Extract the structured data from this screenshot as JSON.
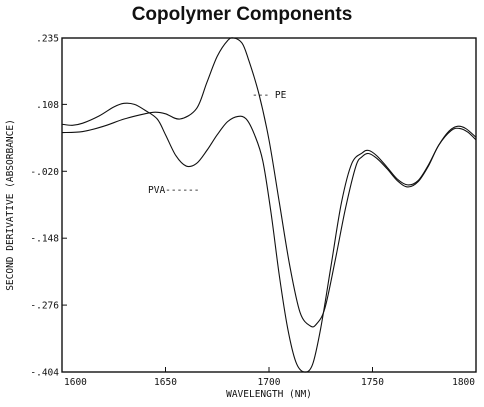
{
  "chart_data": {
    "type": "line",
    "title": "Copolymer Components",
    "xlabel": "WAVELENGTH (NM)",
    "ylabel": "SECOND DERIVATIVE (ABSORBANCE)",
    "xlim": [
      1600,
      1800
    ],
    "ylim": [
      -0.404,
      0.235
    ],
    "x_ticks": [
      1600,
      1650,
      1700,
      1750,
      1800
    ],
    "y_ticks": [
      0.235,
      0.108,
      -0.02,
      -0.148,
      -0.276,
      -0.404
    ],
    "x_tick_labels": [
      "1600",
      "1650",
      "1700",
      "1750",
      "1800"
    ],
    "y_tick_labels": [
      ".235",
      ".108",
      "-.020",
      "-.148",
      "-.276",
      "-.404"
    ],
    "grid": false,
    "series": [
      {
        "name": "PE",
        "label_text": "--- PE",
        "points": [
          [
            1600,
            0.054
          ],
          [
            1610,
            0.056
          ],
          [
            1620,
            0.066
          ],
          [
            1630,
            0.08
          ],
          [
            1640,
            0.09
          ],
          [
            1645,
            0.093
          ],
          [
            1650,
            0.09
          ],
          [
            1657,
            0.08
          ],
          [
            1665,
            0.1
          ],
          [
            1670,
            0.15
          ],
          [
            1675,
            0.2
          ],
          [
            1680,
            0.23
          ],
          [
            1683,
            0.235
          ],
          [
            1687,
            0.225
          ],
          [
            1690,
            0.195
          ],
          [
            1695,
            0.13
          ],
          [
            1700,
            0.04
          ],
          [
            1705,
            -0.08
          ],
          [
            1710,
            -0.2
          ],
          [
            1715,
            -0.29
          ],
          [
            1720,
            -0.316
          ],
          [
            1723,
            -0.312
          ],
          [
            1727,
            -0.282
          ],
          [
            1732,
            -0.19
          ],
          [
            1737,
            -0.09
          ],
          [
            1742,
            -0.01
          ],
          [
            1745,
            0.008
          ],
          [
            1748,
            0.014
          ],
          [
            1752,
            0.005
          ],
          [
            1757,
            -0.015
          ],
          [
            1762,
            -0.038
          ],
          [
            1767,
            -0.05
          ],
          [
            1772,
            -0.04
          ],
          [
            1777,
            -0.01
          ],
          [
            1782,
            0.03
          ],
          [
            1788,
            0.058
          ],
          [
            1792,
            0.062
          ],
          [
            1796,
            0.055
          ],
          [
            1800,
            0.04
          ]
        ]
      },
      {
        "name": "PVA",
        "label_text": "PVA------",
        "points": [
          [
            1600,
            0.07
          ],
          [
            1605,
            0.068
          ],
          [
            1610,
            0.072
          ],
          [
            1618,
            0.086
          ],
          [
            1625,
            0.103
          ],
          [
            1630,
            0.11
          ],
          [
            1635,
            0.108
          ],
          [
            1640,
            0.097
          ],
          [
            1646,
            0.08
          ],
          [
            1650,
            0.05
          ],
          [
            1655,
            0.01
          ],
          [
            1660,
            -0.01
          ],
          [
            1665,
            -0.005
          ],
          [
            1670,
            0.02
          ],
          [
            1675,
            0.05
          ],
          [
            1680,
            0.075
          ],
          [
            1685,
            0.085
          ],
          [
            1689,
            0.08
          ],
          [
            1693,
            0.05
          ],
          [
            1697,
            0.0
          ],
          [
            1701,
            -0.1
          ],
          [
            1705,
            -0.22
          ],
          [
            1709,
            -0.32
          ],
          [
            1713,
            -0.385
          ],
          [
            1717,
            -0.404
          ],
          [
            1721,
            -0.39
          ],
          [
            1725,
            -0.32
          ],
          [
            1730,
            -0.2
          ],
          [
            1735,
            -0.08
          ],
          [
            1740,
            -0.005
          ],
          [
            1745,
            0.015
          ],
          [
            1748,
            0.02
          ],
          [
            1752,
            0.01
          ],
          [
            1757,
            -0.012
          ],
          [
            1762,
            -0.035
          ],
          [
            1767,
            -0.046
          ],
          [
            1772,
            -0.038
          ],
          [
            1777,
            -0.008
          ],
          [
            1782,
            0.03
          ],
          [
            1787,
            0.057
          ],
          [
            1791,
            0.066
          ],
          [
            1795,
            0.062
          ],
          [
            1800,
            0.045
          ]
        ]
      }
    ]
  }
}
